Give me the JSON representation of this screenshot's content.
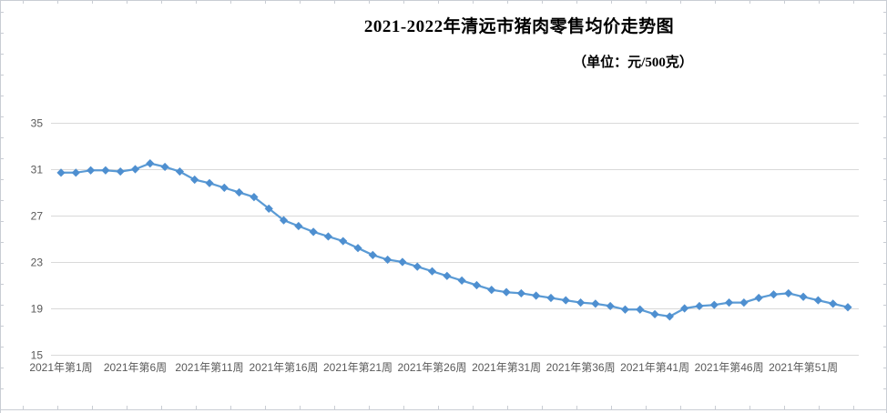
{
  "page": {
    "title": "2021-2022年清远市猪肉零售均价走势图",
    "unit_label": "（单位：元/500克）"
  },
  "colors": {
    "line": "#5B9BD5",
    "marker": "#4E8FD0",
    "gridline": "#D9D9D9",
    "sheet_edge": "#C9CDD4",
    "axis_text": "#595959",
    "title_text": "#000000",
    "background": "#FFFFFF"
  },
  "chart_data": {
    "type": "line",
    "title": "2021-2022年清远市猪肉零售均价走势图",
    "unit": "元/500克",
    "grid": true,
    "legend_position": "none",
    "ylim": [
      15,
      35
    ],
    "y_ticks": [
      15,
      19,
      23,
      27,
      31,
      35
    ],
    "x_tick_labels": [
      "2021年第1周",
      "2021年第6周",
      "2021年第11周",
      "2021年第16周",
      "2021年第21周",
      "2021年第26周",
      "2021年第31周",
      "2021年第36周",
      "2021年第41周",
      "2021年第46周",
      "2021年第51周"
    ],
    "x_tick_point_index": [
      1,
      6,
      11,
      16,
      21,
      26,
      31,
      36,
      41,
      46,
      51
    ],
    "n_points": 54,
    "values": [
      30.7,
      30.7,
      30.9,
      30.9,
      30.8,
      31.0,
      31.5,
      31.2,
      30.8,
      30.1,
      29.8,
      29.4,
      29.0,
      28.6,
      27.6,
      26.6,
      26.1,
      25.6,
      25.2,
      24.8,
      24.2,
      23.6,
      23.2,
      23.0,
      22.6,
      22.2,
      21.8,
      21.4,
      21.0,
      20.6,
      20.4,
      20.3,
      20.1,
      19.9,
      19.7,
      19.5,
      19.4,
      19.2,
      18.9,
      18.9,
      18.5,
      18.3,
      19.0,
      19.2,
      19.3,
      19.5,
      19.5,
      19.9,
      20.2,
      20.3,
      20.0,
      19.7,
      19.4,
      19.1
    ]
  }
}
